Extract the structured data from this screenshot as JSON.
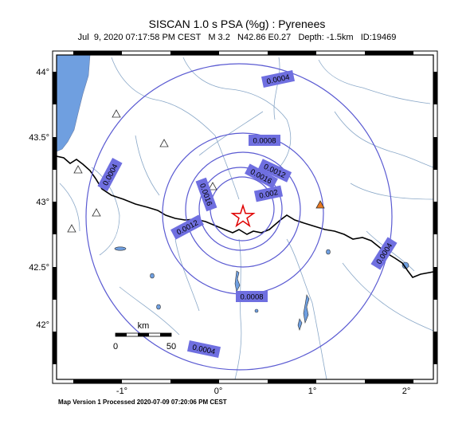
{
  "header": {
    "title": "SISCAN 1.0 s PSA (%g) : Pyrenees",
    "subtitle": "Jul  9, 2020 07:17:58 PM CEST   M 3.2   N42.86 E0.27   Depth: -1.5km   ID:19469"
  },
  "footer": {
    "text": "Map Version 1 Processed 2020-07-09 07:20:06 PM CEST"
  },
  "map": {
    "lon_ticks": [
      "-1°",
      "0°",
      "1°",
      "2°"
    ],
    "lat_ticks": [
      "44°",
      "43.5°",
      "43°",
      "42.5°",
      "42°"
    ],
    "epicenter": {
      "lat": 42.86,
      "lon": 0.27
    },
    "scale_bar": {
      "label": "km",
      "start": "0",
      "end": "50"
    },
    "contour_labels": [
      "0.0004",
      "0.0004",
      "0.0008",
      "0.0012",
      "0.0016",
      "0.002",
      "0.0016",
      "0.0012",
      "0.0008",
      "0.0004",
      "0.0004"
    ],
    "colors": {
      "contour": "#5a5ad2",
      "label_box": "#6f6fe0",
      "border": "#000000",
      "rivers": "#8aa8c8",
      "sea": "#6f9fe0",
      "epicenter": "#e00000",
      "station_active": "#e87820"
    }
  }
}
